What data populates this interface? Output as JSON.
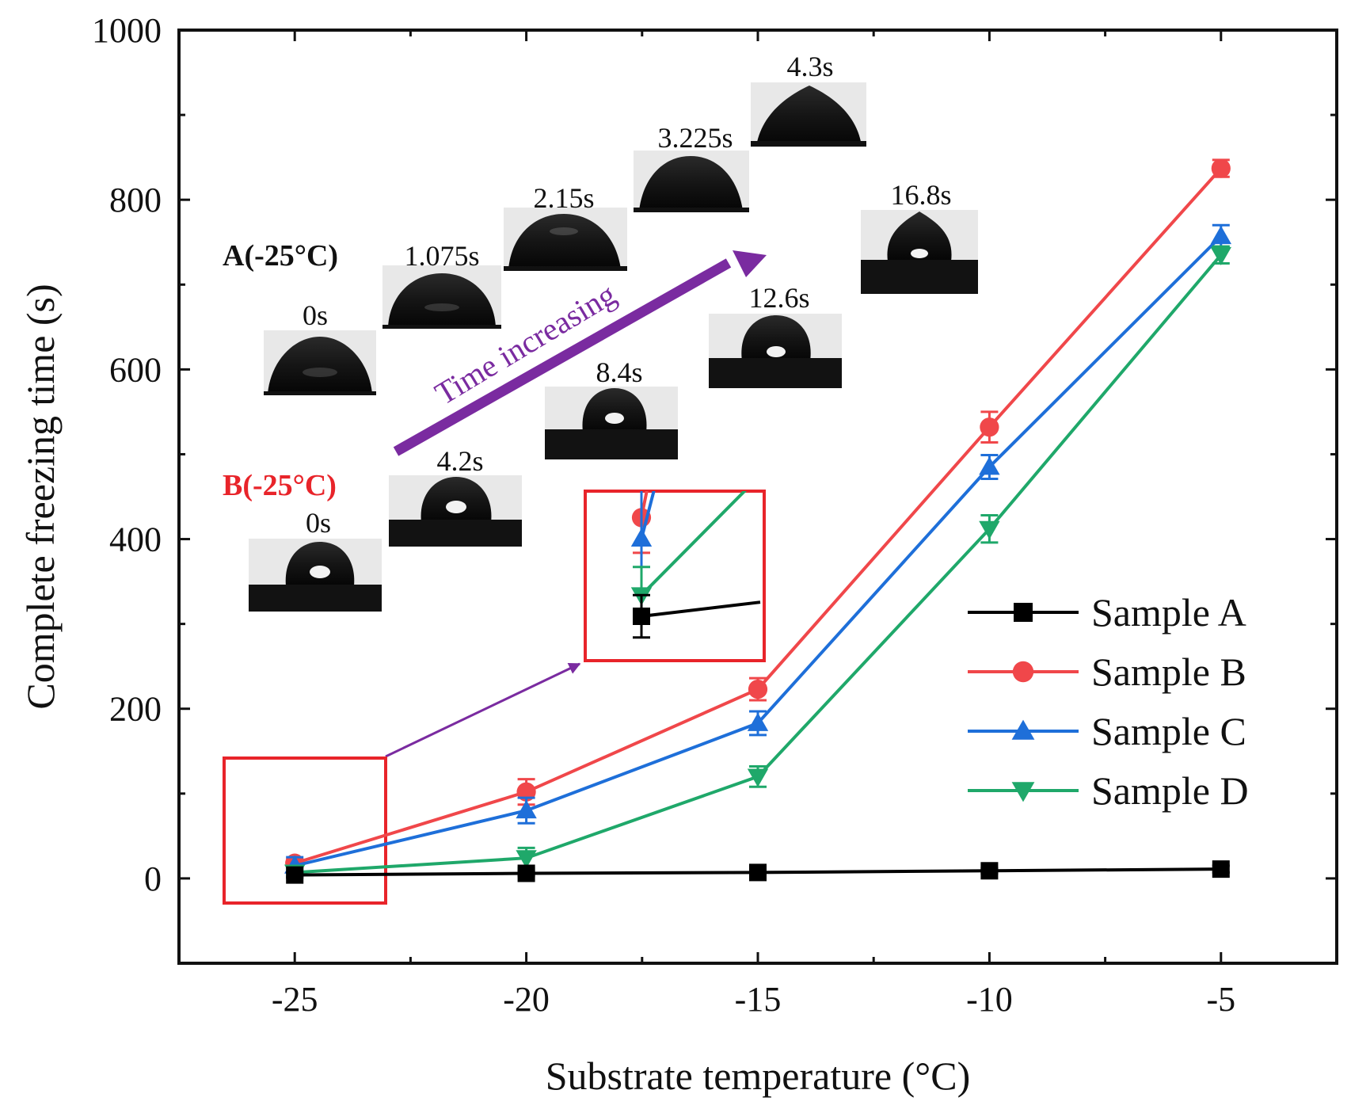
{
  "chart_data": {
    "type": "line",
    "title": "",
    "xlabel": "Substrate temperature (°C)",
    "ylabel": "Complete freezing time (s)",
    "xlim": [
      -27.5,
      -2.5
    ],
    "ylim": [
      -100,
      1000
    ],
    "x": [
      -25,
      -20,
      -15,
      -10,
      -5
    ],
    "x_tick_labels": [
      "-25",
      "-20",
      "-15",
      "-10",
      "-5"
    ],
    "y_ticks": [
      0,
      200,
      400,
      600,
      800,
      1000
    ],
    "y_tick_labels": [
      "0",
      "200",
      "400",
      "600",
      "800",
      "1000"
    ],
    "legend_position": "bottom-right",
    "series": [
      {
        "name": "Sample A",
        "color": "#000000",
        "marker": "square",
        "values": [
          4,
          6,
          7,
          9,
          11
        ],
        "errors": [
          3,
          3,
          3,
          3,
          4
        ]
      },
      {
        "name": "Sample B",
        "color": "#f0474a",
        "marker": "circle",
        "values": [
          18,
          102,
          223,
          532,
          837
        ],
        "errors": [
          5,
          15,
          13,
          18,
          10
        ]
      },
      {
        "name": "Sample C",
        "color": "#1e6fd9",
        "marker": "triangle-up",
        "values": [
          15,
          80,
          183,
          485,
          757
        ],
        "errors": [
          10,
          15,
          14,
          14,
          13
        ]
      },
      {
        "name": "Sample D",
        "color": "#1fa86a",
        "marker": "triangle-down",
        "values": [
          7,
          24,
          120,
          412,
          735
        ],
        "errors": [
          4,
          12,
          12,
          16,
          10
        ]
      }
    ],
    "annotations": {
      "trend_label": "Time increasing",
      "sample_a": {
        "label": "A(-25°C)",
        "times": [
          "0s",
          "1.075s",
          "2.15s",
          "3.225s",
          "4.3s"
        ]
      },
      "sample_b": {
        "label": "B(-25°C)",
        "times": [
          "0s",
          "4.2s",
          "8.4s",
          "12.6s",
          "16.8s"
        ]
      }
    }
  },
  "colors": {
    "trend_arrow": "#7a2ba0",
    "zoom_box": "#e8242a",
    "sample_b_label": "#e8242a",
    "sample_a_label": "#111111"
  }
}
